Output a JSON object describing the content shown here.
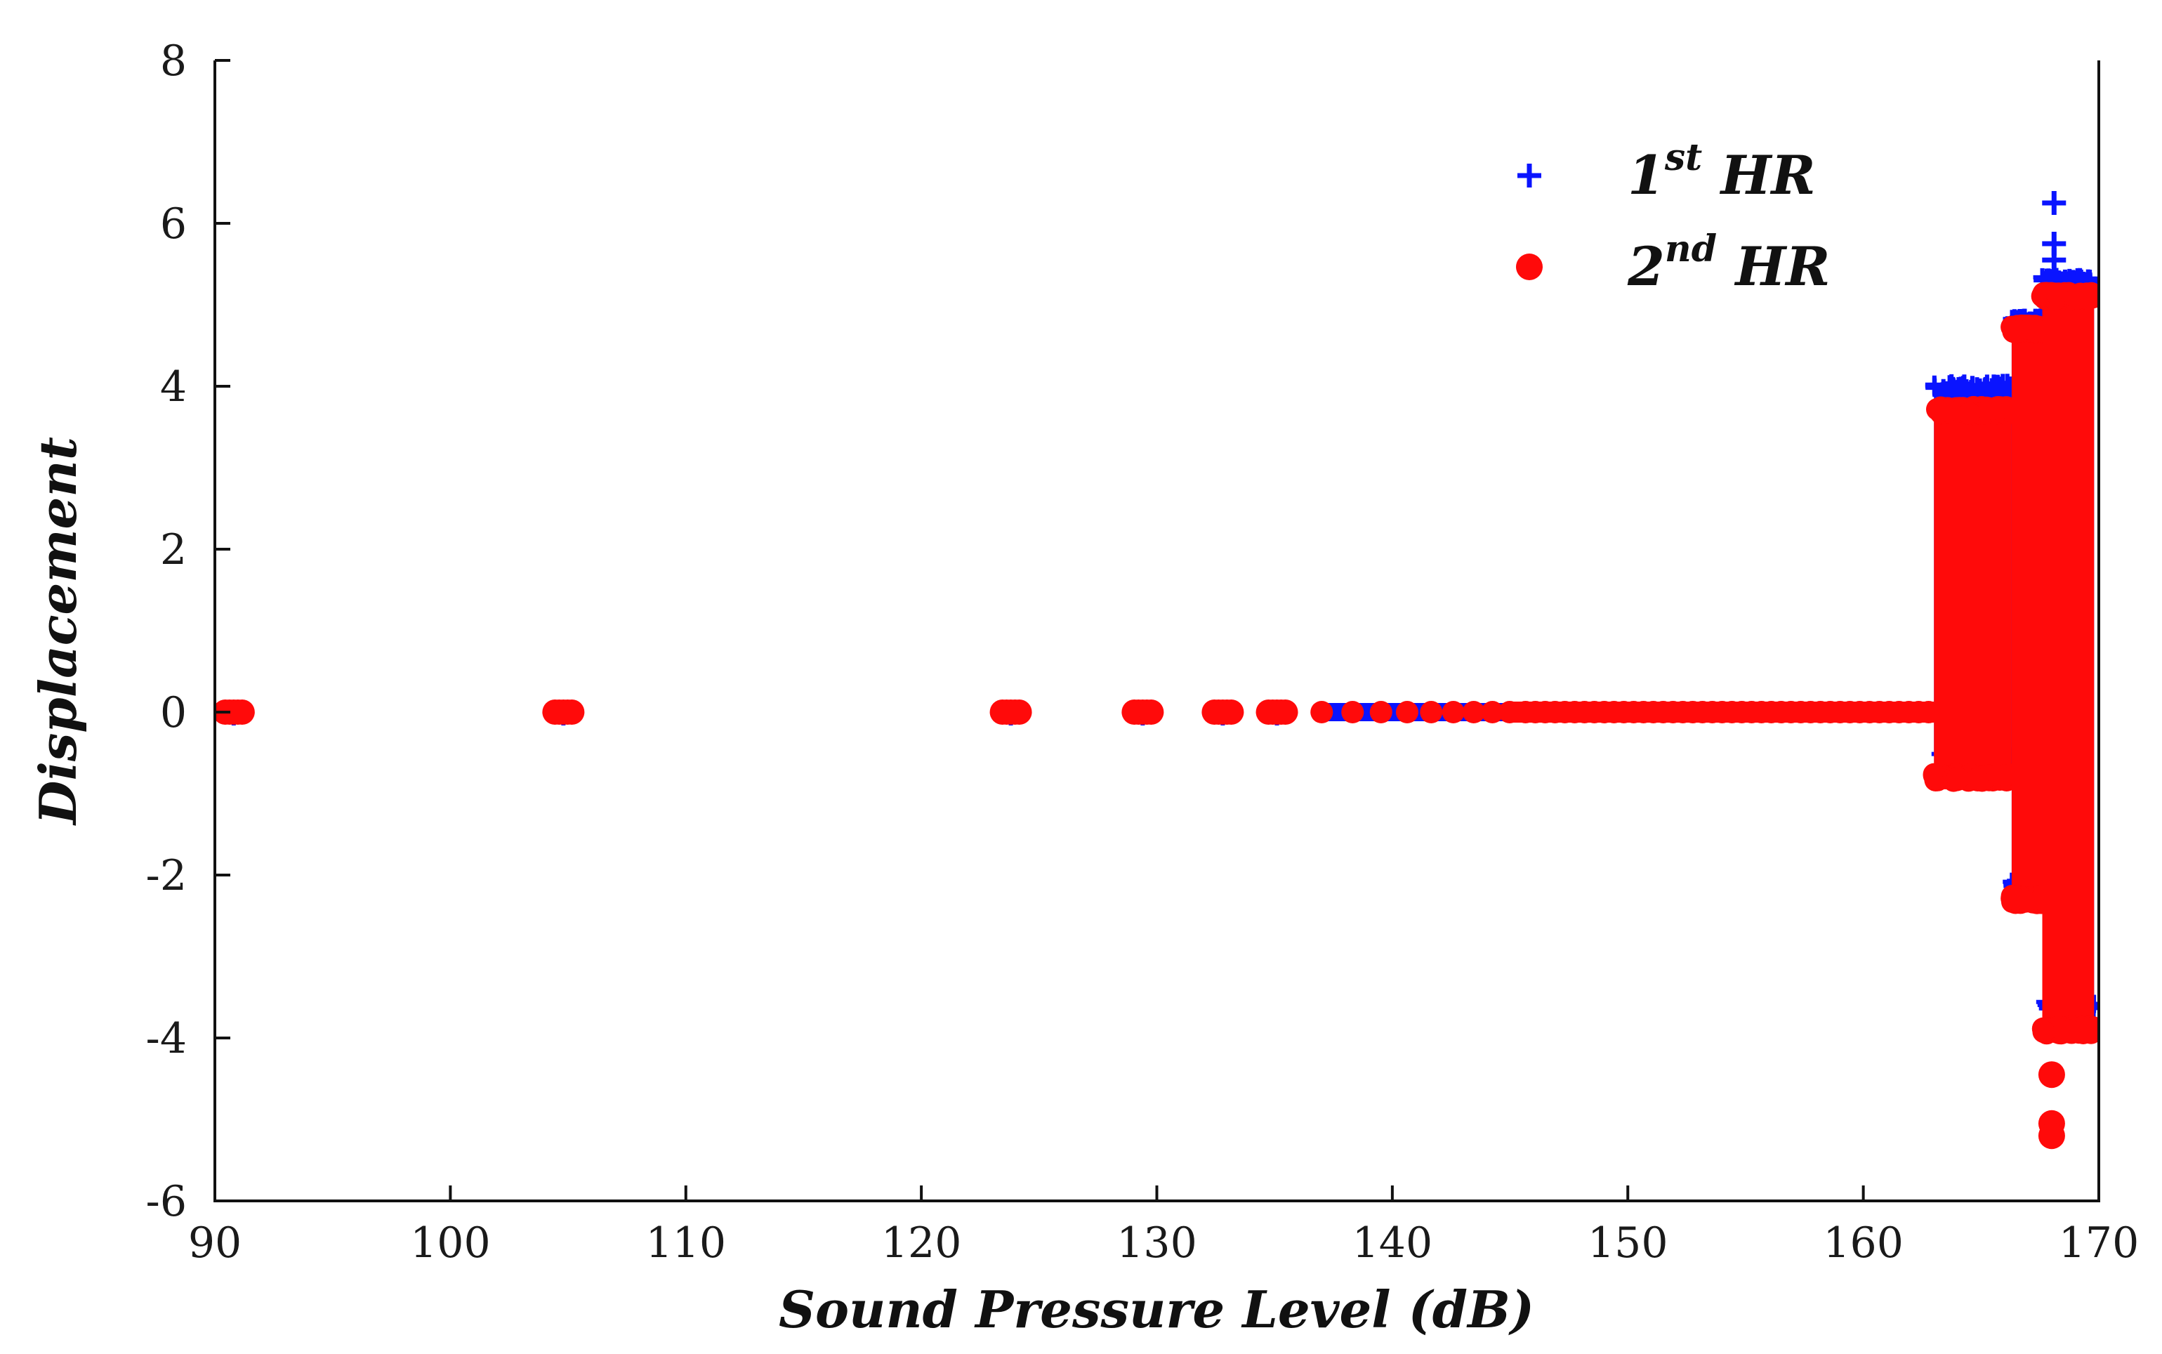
{
  "chart_data": {
    "type": "scatter",
    "title": "",
    "xlabel": "Sound Pressure Level (dB)",
    "ylabel": "Displacement",
    "xlim": [
      90,
      170
    ],
    "ylim": [
      -6,
      8
    ],
    "xticks": [
      90,
      100,
      110,
      120,
      130,
      140,
      150,
      160,
      170
    ],
    "yticks": [
      8,
      6,
      4,
      2,
      0,
      -2,
      -4,
      -6
    ],
    "grid": false,
    "legend_position": "top-right",
    "series": [
      {
        "name": "1st HR",
        "label_main": "1",
        "label_sup": "st",
        "label_rest": " HR",
        "marker": "plus",
        "color": "#0a14ff",
        "isolated_points": [
          [
            90.8,
            0
          ],
          [
            104.8,
            0
          ],
          [
            123.8,
            0
          ],
          [
            129.4,
            0
          ],
          [
            132.8,
            0
          ],
          [
            135.1,
            0
          ]
        ],
        "flat_band": {
          "x_start": 137,
          "x_end": 163,
          "y": 0
        },
        "bands": [
          {
            "x_start": 163.0,
            "x_end": 166.3,
            "y_min": -0.55,
            "y_max": 4.0
          },
          {
            "x_start": 166.3,
            "x_end": 167.6,
            "y_min": -2.1,
            "y_max": 4.8
          },
          {
            "x_start": 167.6,
            "x_end": 169.8,
            "y_min": -3.6,
            "y_max": 5.3
          }
        ],
        "outliers": [
          [
            168.1,
            6.25
          ],
          [
            168.1,
            5.75
          ],
          [
            168.1,
            5.55
          ]
        ]
      },
      {
        "name": "2nd HR",
        "label_main": "2",
        "label_sup": "nd",
        "label_rest": " HR",
        "marker": "circle",
        "color": "#ff0a0a",
        "isolated_points": [
          [
            90.8,
            0
          ],
          [
            104.8,
            0
          ],
          [
            123.8,
            0
          ],
          [
            129.4,
            0
          ],
          [
            132.8,
            0
          ],
          [
            135.1,
            0
          ]
        ],
        "flat_band": {
          "x_start": 137,
          "x_end": 163,
          "y": 0
        },
        "bands": [
          {
            "x_start": 163.0,
            "x_end": 166.3,
            "y_min": -0.8,
            "y_max": 3.7
          },
          {
            "x_start": 166.3,
            "x_end": 167.6,
            "y_min": -2.3,
            "y_max": 4.7
          },
          {
            "x_start": 167.6,
            "x_end": 169.8,
            "y_min": -3.9,
            "y_max": 5.1
          }
        ],
        "outliers": [
          [
            168.0,
            -4.45
          ],
          [
            168.0,
            -5.05
          ],
          [
            168.0,
            -5.2
          ]
        ]
      }
    ]
  }
}
